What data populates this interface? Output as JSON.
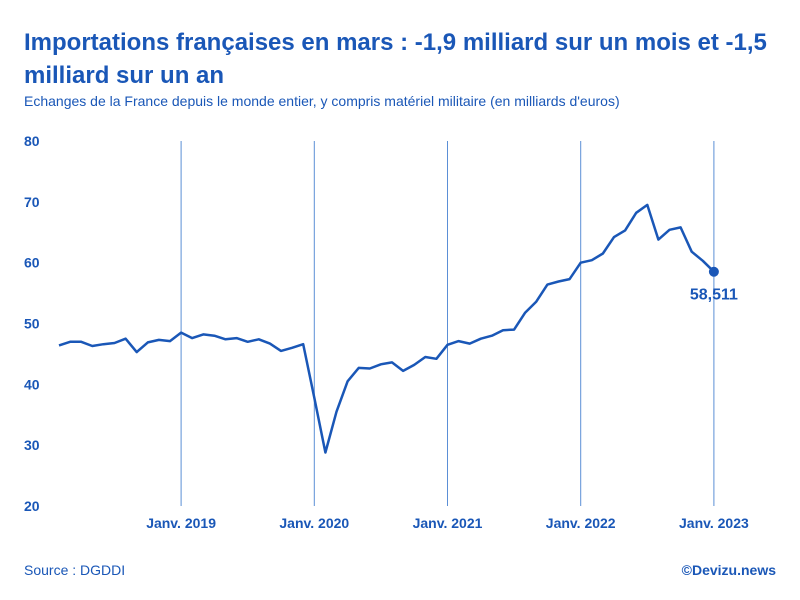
{
  "header": {
    "title": "Importations françaises en mars : -1,9 milliard sur un mois et -1,5 milliard sur un an",
    "subtitle": "Echanges de la France depuis le monde entier, y compris matériel militaire (en milliards d'euros)"
  },
  "footer": {
    "source": "Source : DGDDI",
    "credit": "©Devizu.news"
  },
  "colors": {
    "primary": "#1a57b7",
    "gridline": "#5b8fd6"
  },
  "chart_data": {
    "type": "line",
    "title": "Importations françaises en mars : -1,9 milliard sur un mois et -1,5 milliard sur un an",
    "xlabel": "",
    "ylabel": "",
    "ylim": [
      20,
      80
    ],
    "yticks": [
      20,
      30,
      40,
      50,
      60,
      70,
      80
    ],
    "xlim": [
      "2018-02",
      "2023-06"
    ],
    "xticks": [
      {
        "label": "Janv. 2019",
        "month_index": 11
      },
      {
        "label": "Janv. 2020",
        "month_index": 23
      },
      {
        "label": "Janv. 2021",
        "month_index": 35
      },
      {
        "label": "Janv. 2022",
        "month_index": 47
      },
      {
        "label": "Janv. 2023",
        "month_index": 59
      }
    ],
    "x_start": "2018-02",
    "end_label": "58,511",
    "series": [
      {
        "name": "Importations",
        "values": [
          46.4,
          47.0,
          47.0,
          46.3,
          46.6,
          46.8,
          47.5,
          45.3,
          46.9,
          47.3,
          47.1,
          48.5,
          47.6,
          48.2,
          48.0,
          47.4,
          47.6,
          47.0,
          47.4,
          46.7,
          45.5,
          46.0,
          46.6,
          37.8,
          28.8,
          35.5,
          40.5,
          42.7,
          42.6,
          43.3,
          43.6,
          42.2,
          43.2,
          44.5,
          44.2,
          46.5,
          47.1,
          46.7,
          47.5,
          48.0,
          48.9,
          49.0,
          51.8,
          53.6,
          56.4,
          56.9,
          57.3,
          60.0,
          60.4,
          61.5,
          64.2,
          65.3,
          68.2,
          69.5,
          63.8,
          65.4,
          65.8,
          61.8,
          60.3,
          58.511
        ]
      }
    ]
  }
}
